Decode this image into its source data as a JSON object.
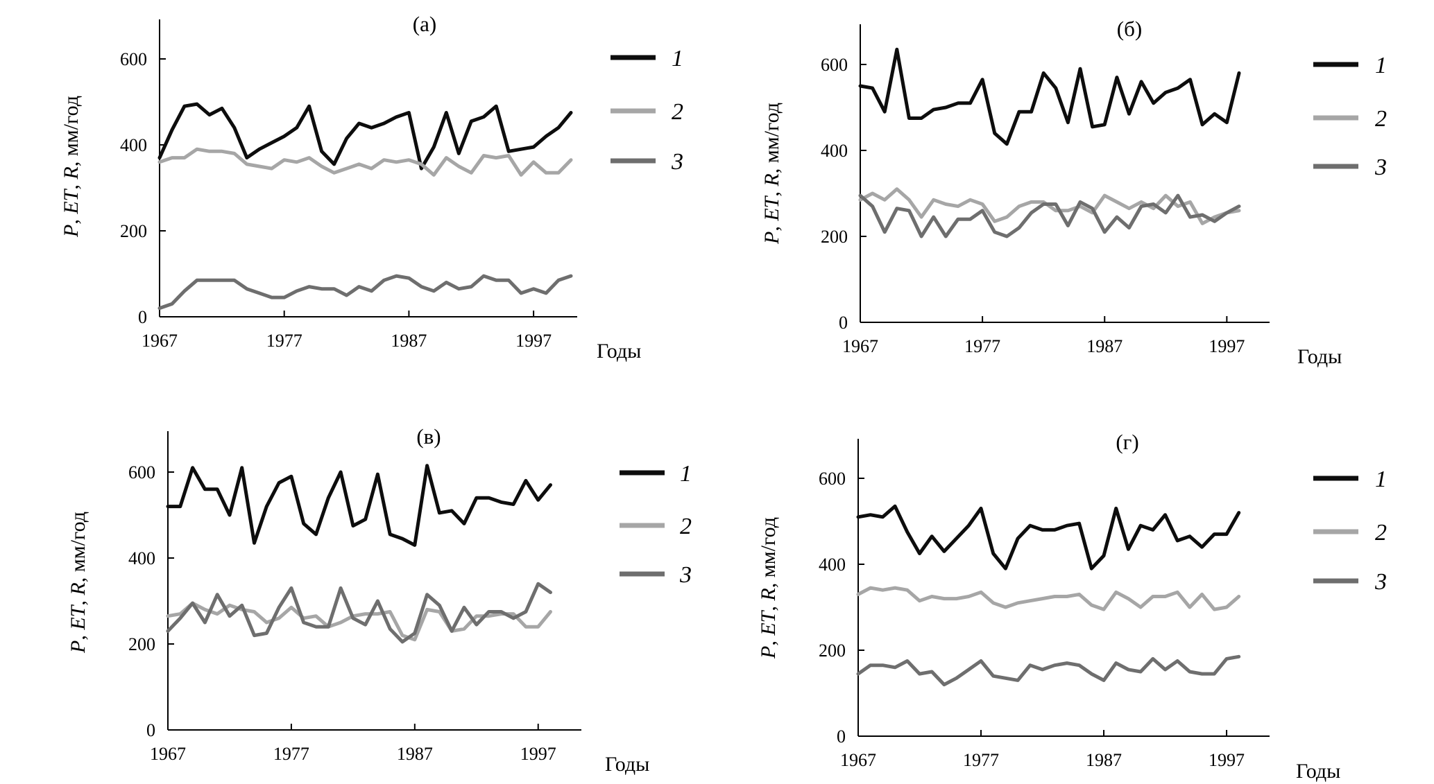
{
  "colors": {
    "series_1": "#0d0d0d",
    "series_2": "#a6a6a6",
    "series_3": "#6e6e6e",
    "axis": "#000000"
  },
  "chart_data": [
    {
      "type": "line",
      "title": "(а)",
      "xlabel": "Годы",
      "ylabel": "P, ET, R, мм/год",
      "ylim": [
        0,
        700
      ],
      "xlim": [
        1967,
        2000.5
      ],
      "x_ticks": [
        "1967",
        "1977",
        "1987",
        "1997"
      ],
      "y_ticks": [
        "0",
        "200",
        "400",
        "600"
      ],
      "x": [
        1967,
        1968,
        1969,
        1970,
        1971,
        1972,
        1973,
        1974,
        1975,
        1976,
        1977,
        1978,
        1979,
        1980,
        1981,
        1982,
        1983,
        1984,
        1985,
        1986,
        1987,
        1988,
        1989,
        1990,
        1991,
        1992,
        1993,
        1994,
        1995,
        1996,
        1997,
        1998,
        1999,
        2000
      ],
      "series": [
        {
          "name": "1",
          "values": [
            370,
            435,
            490,
            495,
            470,
            485,
            440,
            370,
            390,
            405,
            420,
            440,
            490,
            385,
            355,
            415,
            450,
            440,
            450,
            465,
            475,
            345,
            395,
            475,
            380,
            455,
            465,
            490,
            385,
            390,
            395,
            420,
            440,
            475
          ]
        },
        {
          "name": "2",
          "values": [
            360,
            370,
            370,
            390,
            385,
            385,
            380,
            355,
            350,
            345,
            365,
            360,
            370,
            350,
            335,
            345,
            355,
            345,
            365,
            360,
            365,
            355,
            330,
            370,
            350,
            335,
            375,
            370,
            375,
            330,
            360,
            335,
            335,
            365
          ]
        },
        {
          "name": "3",
          "values": [
            20,
            30,
            60,
            85,
            85,
            85,
            85,
            65,
            55,
            45,
            45,
            60,
            70,
            65,
            65,
            50,
            70,
            60,
            85,
            95,
            90,
            70,
            60,
            80,
            65,
            70,
            95,
            85,
            85,
            55,
            65,
            55,
            85,
            95
          ]
        }
      ]
    },
    {
      "type": "line",
      "title": "(б)",
      "xlabel": "Годы",
      "ylabel": "P, ET, R, мм/год",
      "ylim": [
        0,
        700
      ],
      "xlim": [
        1967,
        2000.5
      ],
      "x_ticks": [
        "1967",
        "1977",
        "1987",
        "1997"
      ],
      "y_ticks": [
        "0",
        "200",
        "400",
        "600"
      ],
      "x": [
        1967,
        1968,
        1969,
        1970,
        1971,
        1972,
        1973,
        1974,
        1975,
        1976,
        1977,
        1978,
        1979,
        1980,
        1981,
        1982,
        1983,
        1984,
        1985,
        1986,
        1987,
        1988,
        1989,
        1990,
        1991,
        1992,
        1993,
        1994,
        1995,
        1996,
        1997,
        1998
      ],
      "series": [
        {
          "name": "1",
          "values": [
            550,
            545,
            490,
            635,
            475,
            475,
            495,
            500,
            510,
            510,
            565,
            440,
            415,
            490,
            490,
            580,
            545,
            465,
            590,
            455,
            460,
            570,
            485,
            560,
            510,
            535,
            545,
            565,
            460,
            485,
            465,
            580
          ]
        },
        {
          "name": "2",
          "values": [
            285,
            300,
            285,
            310,
            285,
            245,
            285,
            275,
            270,
            285,
            275,
            235,
            245,
            270,
            280,
            280,
            260,
            260,
            270,
            255,
            295,
            280,
            265,
            280,
            265,
            295,
            270,
            280,
            230,
            245,
            255,
            260
          ]
        },
        {
          "name": "3",
          "values": [
            295,
            270,
            210,
            265,
            260,
            200,
            245,
            200,
            240,
            240,
            260,
            210,
            200,
            220,
            255,
            275,
            275,
            225,
            280,
            265,
            210,
            245,
            220,
            270,
            275,
            255,
            295,
            245,
            250,
            235,
            255,
            270
          ]
        }
      ]
    },
    {
      "type": "line",
      "title": "(в)",
      "xlabel": "Годы",
      "ylabel": "P, ET, R, мм/год",
      "ylim": [
        0,
        700
      ],
      "xlim": [
        1967,
        2000.5
      ],
      "x_ticks": [
        "1967",
        "1977",
        "1987",
        "1997"
      ],
      "y_ticks": [
        "0",
        "200",
        "400",
        "600"
      ],
      "x": [
        1967,
        1968,
        1969,
        1970,
        1971,
        1972,
        1973,
        1974,
        1975,
        1976,
        1977,
        1978,
        1979,
        1980,
        1981,
        1982,
        1983,
        1984,
        1985,
        1986,
        1987,
        1988,
        1989,
        1990,
        1991,
        1992,
        1993,
        1994,
        1995,
        1996,
        1997,
        1998
      ],
      "series": [
        {
          "name": "1",
          "values": [
            520,
            520,
            610,
            560,
            560,
            500,
            610,
            435,
            520,
            575,
            590,
            480,
            455,
            540,
            600,
            475,
            490,
            595,
            455,
            445,
            430,
            615,
            505,
            510,
            480,
            540,
            540,
            530,
            525,
            580,
            535,
            570
          ]
        },
        {
          "name": "2",
          "values": [
            265,
            270,
            295,
            280,
            270,
            290,
            280,
            275,
            250,
            260,
            285,
            260,
            265,
            240,
            250,
            265,
            270,
            270,
            275,
            220,
            210,
            280,
            275,
            230,
            235,
            265,
            265,
            270,
            270,
            240,
            240,
            275
          ]
        },
        {
          "name": "3",
          "values": [
            230,
            260,
            295,
            250,
            315,
            265,
            290,
            220,
            225,
            285,
            330,
            250,
            240,
            240,
            330,
            260,
            245,
            300,
            235,
            205,
            225,
            315,
            290,
            230,
            285,
            245,
            275,
            275,
            260,
            275,
            340,
            320
          ]
        }
      ]
    },
    {
      "type": "line",
      "title": "(г)",
      "xlabel": "Годы",
      "ylabel": "P, ET, R, мм/год",
      "ylim": [
        0,
        700
      ],
      "xlim": [
        1967,
        2000.5
      ],
      "x_ticks": [
        "1967",
        "1977",
        "1987",
        "1997"
      ],
      "y_ticks": [
        "0",
        "200",
        "400",
        "600"
      ],
      "x": [
        1967,
        1968,
        1969,
        1970,
        1971,
        1972,
        1973,
        1974,
        1975,
        1976,
        1977,
        1978,
        1979,
        1980,
        1981,
        1982,
        1983,
        1984,
        1985,
        1986,
        1987,
        1988,
        1989,
        1990,
        1991,
        1992,
        1993,
        1994,
        1995,
        1996,
        1997,
        1998
      ],
      "series": [
        {
          "name": "1",
          "values": [
            510,
            515,
            510,
            535,
            475,
            425,
            465,
            430,
            460,
            490,
            530,
            425,
            390,
            460,
            490,
            480,
            480,
            490,
            495,
            390,
            420,
            530,
            435,
            490,
            480,
            515,
            455,
            465,
            440,
            470,
            470,
            520
          ]
        },
        {
          "name": "2",
          "values": [
            330,
            345,
            340,
            345,
            340,
            315,
            325,
            320,
            320,
            325,
            335,
            310,
            300,
            310,
            315,
            320,
            325,
            325,
            330,
            305,
            295,
            335,
            320,
            300,
            325,
            325,
            335,
            300,
            330,
            295,
            300,
            325
          ]
        },
        {
          "name": "3",
          "values": [
            145,
            165,
            165,
            160,
            175,
            145,
            150,
            120,
            135,
            155,
            175,
            140,
            135,
            130,
            165,
            155,
            165,
            170,
            165,
            145,
            130,
            170,
            155,
            150,
            180,
            155,
            175,
            150,
            145,
            145,
            180,
            185
          ]
        }
      ]
    }
  ]
}
